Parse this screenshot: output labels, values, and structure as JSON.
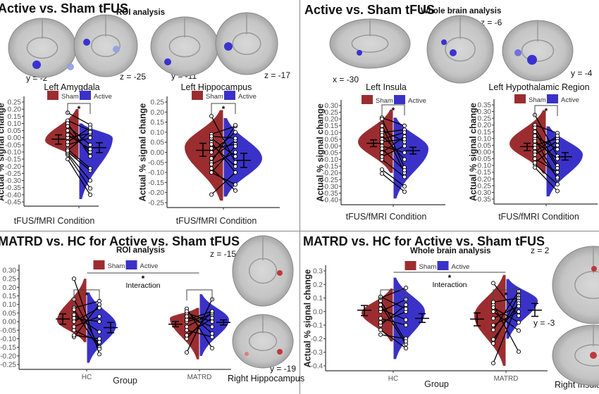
{
  "colors": {
    "sham": "#9b2d30",
    "active": "#3a32c8",
    "axis": "#333333",
    "tick_text": "#555555"
  },
  "legend": {
    "sham": "Sham",
    "active": "Active"
  },
  "panels": [
    {
      "title": "Active vs. Sham tFUS",
      "subtitle": "ROI analysis",
      "slice_labels": [
        "y = -2",
        "z = -25",
        "y = -11",
        "z = -17"
      ],
      "highlight": "blue"
    },
    {
      "title": "Active vs. Sham tFUS",
      "subtitle": "Whole brain analysis",
      "slice_labels": [
        "x = -30",
        "z = -6",
        "y = -4"
      ],
      "highlight": "blue"
    },
    {
      "title": "MATRD vs. HC for Active vs. Sham tFUS",
      "subtitle": "ROI analysis",
      "slice_labels": [
        "z = -15",
        "y = -19"
      ],
      "region_label": "Right Hippocampus",
      "highlight": "red"
    },
    {
      "title": "MATRD vs. HC for Active vs. Sham tFUS",
      "subtitle": "Whole brain analysis",
      "slice_labels": [
        "z = 2",
        "y = -3"
      ],
      "region_label": "Right Insula",
      "highlight": "red"
    }
  ],
  "chart_data": [
    {
      "type": "violin",
      "title": "Left Amygdala",
      "xlabel": "tFUS/fMRI Condition",
      "ylabel": "Actual % signal change",
      "yticks": [
        "0.25",
        "0.20",
        "0.15",
        "0.10",
        "0.05",
        "0.00",
        "-0.05",
        "-0.10",
        "-0.15",
        "-0.20",
        "-0.25",
        "-0.30",
        "-0.35",
        "-0.40",
        "-0.45"
      ],
      "categories": [
        ""
      ],
      "groups": [
        {
          "sham": {
            "mean": -0.01,
            "ci": [
              -0.045,
              0.02
            ],
            "violin": {
              "min": -0.15,
              "max": 0.2,
              "mode": -0.02
            }
          },
          "active": {
            "mean": -0.07,
            "ci": [
              -0.105,
              -0.035
            ],
            "violin": {
              "min": -0.43,
              "max": 0.1,
              "mode": 0.0
            }
          },
          "pairs": [
            [
              0.175,
              0.09
            ],
            [
              0.12,
              0.05
            ],
            [
              -0.15,
              -0.4
            ],
            [
              -0.12,
              -0.355
            ],
            [
              -0.11,
              -0.3
            ],
            [
              -0.1,
              -0.23
            ],
            [
              -0.08,
              -0.215
            ],
            [
              0.1,
              -0.13
            ],
            [
              0.05,
              -0.1
            ],
            [
              0.0,
              0.03
            ],
            [
              -0.05,
              0.0
            ],
            [
              0.08,
              -0.05
            ],
            [
              -0.03,
              0.07
            ],
            [
              0.02,
              -0.08
            ],
            [
              -0.09,
              0.04
            ]
          ],
          "bracket": "*"
        }
      ]
    },
    {
      "type": "violin",
      "title": "Left Hippocampus",
      "xlabel": "tFUS/fMRI Condition",
      "ylabel": "Actual % signal change",
      "yticks": [
        "0.25",
        "0.20",
        "0.15",
        "0.10",
        "0.05",
        "0.00",
        "-0.05",
        "-0.10",
        "-0.15",
        "-0.20",
        "-0.25"
      ],
      "categories": [
        ""
      ],
      "groups": [
        {
          "sham": {
            "mean": 0.01,
            "ci": [
              -0.02,
              0.045
            ],
            "violin": {
              "min": -0.24,
              "max": 0.21,
              "mode": 0.025
            }
          },
          "active": {
            "mean": -0.04,
            "ci": [
              -0.075,
              -0.005
            ],
            "violin": {
              "min": -0.22,
              "max": 0.17,
              "mode": -0.03
            }
          },
          "pairs": [
            [
              0.18,
              -0.05
            ],
            [
              -0.21,
              -0.1
            ],
            [
              0.09,
              0.13
            ],
            [
              -0.05,
              0.135
            ],
            [
              0.0,
              0.1
            ],
            [
              -0.1,
              -0.16
            ],
            [
              -0.08,
              -0.19
            ],
            [
              0.05,
              -0.1
            ],
            [
              0.02,
              0.04
            ],
            [
              -0.03,
              0.06
            ],
            [
              0.07,
              -0.02
            ],
            [
              -0.06,
              0.0
            ],
            [
              0.04,
              -0.07
            ],
            [
              -0.1,
              0.03
            ],
            [
              0.08,
              0.07
            ]
          ],
          "bracket": "*"
        }
      ]
    },
    {
      "type": "violin",
      "title": "Left Insula",
      "xlabel": "tFUS/fMRI Condition",
      "ylabel": "Actual % signal change",
      "yticks": [
        "0.30",
        "0.25",
        "0.20",
        "0.15",
        "0.10",
        "0.05",
        "0.00",
        "-0.05",
        "-0.10",
        "-0.15",
        "-0.20",
        "-0.25",
        "-0.30",
        "-0.35",
        "-0.40"
      ],
      "categories": [
        ""
      ],
      "groups": [
        {
          "sham": {
            "mean": 0.02,
            "ci": [
              -0.005,
              0.045
            ],
            "violin": {
              "min": -0.2,
              "max": 0.27,
              "mode": 0.03
            }
          },
          "active": {
            "mean": -0.035,
            "ci": [
              -0.06,
              -0.01
            ],
            "violin": {
              "min": -0.39,
              "max": 0.21,
              "mode": -0.02
            }
          },
          "pairs": [
            [
              0.21,
              0.15
            ],
            [
              -0.175,
              -0.3
            ],
            [
              -0.205,
              -0.34
            ],
            [
              0.2,
              -0.16
            ],
            [
              0.15,
              -0.2
            ],
            [
              0.1,
              0.12
            ],
            [
              -0.1,
              -0.23
            ],
            [
              0.05,
              0.1
            ],
            [
              0.0,
              -0.05
            ],
            [
              -0.05,
              0.07
            ],
            [
              0.08,
              -0.1
            ],
            [
              -0.08,
              0.0
            ],
            [
              0.12,
              0.03
            ],
            [
              -0.02,
              -0.18
            ],
            [
              0.03,
              0.05
            ]
          ],
          "bracket": "*"
        }
      ]
    },
    {
      "type": "violin",
      "title": "Left Hypothalamic Region",
      "xlabel": "tFUS/fMRI Condition",
      "ylabel": "Actual % signal change",
      "yticks": [
        "0.35",
        "0.30",
        "0.25",
        "0.20",
        "0.15",
        "0.10",
        "0.05",
        "0.00",
        "-0.05",
        "-0.10",
        "-0.15",
        "-0.20",
        "-0.25",
        "-0.30",
        "-0.35"
      ],
      "categories": [
        ""
      ],
      "groups": [
        {
          "sham": {
            "mean": 0.04,
            "ci": [
              0.01,
              0.065
            ],
            "violin": {
              "min": -0.16,
              "max": 0.31,
              "mode": 0.06
            }
          },
          "active": {
            "mean": -0.035,
            "ci": [
              -0.06,
              -0.005
            ],
            "violin": {
              "min": -0.33,
              "max": 0.19,
              "mode": -0.02
            }
          },
          "pairs": [
            [
              0.275,
              -0.03
            ],
            [
              0.2,
              0.14
            ],
            [
              0.18,
              -0.1
            ],
            [
              -0.115,
              -0.29
            ],
            [
              -0.09,
              -0.24
            ],
            [
              0.1,
              -0.2
            ],
            [
              0.05,
              0.1
            ],
            [
              0.0,
              0.12
            ],
            [
              -0.05,
              -0.15
            ],
            [
              0.12,
              0.02
            ],
            [
              -0.08,
              0.05
            ],
            [
              0.03,
              -0.19
            ],
            [
              0.08,
              -0.05
            ],
            [
              -0.02,
              0.08
            ],
            [
              0.15,
              -0.12
            ]
          ],
          "bracket": "*"
        }
      ]
    },
    {
      "type": "violin",
      "title": "",
      "xlabel": "Group",
      "ylabel": "",
      "yticks": [
        "0.30",
        "0.25",
        "0.20",
        "0.15",
        "0.10",
        "0.05",
        "0.00",
        "-0.05",
        "-0.10",
        "-0.15",
        "-0.20",
        "-0.25"
      ],
      "categories": [
        "HC",
        "MATRD"
      ],
      "interaction": {
        "star": "*",
        "label": "Interaction"
      },
      "groups": [
        {
          "sham": {
            "mean": 0.015,
            "ci": [
              -0.015,
              0.045
            ],
            "violin": {
              "min": -0.12,
              "max": 0.25,
              "mode": 0.005
            }
          },
          "active": {
            "mean": -0.035,
            "ci": [
              -0.065,
              -0.005
            ],
            "violin": {
              "min": -0.24,
              "max": 0.17,
              "mode": -0.02
            }
          },
          "pairs": [
            [
              0.25,
              -0.19
            ],
            [
              0.13,
              -0.15
            ],
            [
              0.08,
              0.12
            ],
            [
              -0.09,
              0.1
            ],
            [
              -0.08,
              -0.1
            ],
            [
              0.07,
              -0.16
            ],
            [
              0.0,
              0.08
            ],
            [
              -0.03,
              0.03
            ],
            [
              0.04,
              -0.06
            ],
            [
              -0.05,
              -0.12
            ],
            [
              0.02,
              0.0
            ]
          ],
          "bracket": "*"
        },
        {
          "sham": {
            "mean": -0.015,
            "ci": [
              -0.03,
              0.0
            ],
            "violin": {
              "min": -0.22,
              "max": 0.08,
              "mode": 0.02
            }
          },
          "active": {
            "mean": -0.005,
            "ci": [
              -0.02,
              0.01
            ],
            "violin": {
              "min": -0.2,
              "max": 0.16,
              "mode": 0.01
            }
          },
          "pairs": [
            [
              -0.18,
              0.13
            ],
            [
              0.075,
              -0.155
            ],
            [
              -0.1,
              0.06
            ],
            [
              0.05,
              0.0
            ],
            [
              0.0,
              0.04
            ],
            [
              -0.05,
              -0.09
            ],
            [
              0.03,
              -0.03
            ],
            [
              -0.03,
              0.05
            ],
            [
              0.06,
              -0.07
            ],
            [
              -0.08,
              0.02
            ],
            [
              0.01,
              0.06
            ]
          ],
          "bracket": ""
        }
      ]
    },
    {
      "type": "violin",
      "title": "",
      "xlabel": "Group",
      "ylabel": "Actual % signal change",
      "yticks": [
        "0.3",
        "0.2",
        "0.1",
        "0.0",
        "-0.1",
        "-0.2",
        "-0.3",
        "-0.4"
      ],
      "categories": [
        "HC",
        "MATRD"
      ],
      "interaction": {
        "star": "*",
        "label": "Interaction"
      },
      "groups": [
        {
          "sham": {
            "mean": 0.01,
            "ci": [
              -0.03,
              0.045
            ],
            "violin": {
              "min": -0.22,
              "max": 0.17,
              "mode": -0.01
            }
          },
          "active": {
            "mean": -0.05,
            "ci": [
              -0.08,
              -0.015
            ],
            "violin": {
              "min": -0.35,
              "max": 0.25,
              "mode": 0.0
            }
          },
          "pairs": [
            [
              0.1,
              0.175
            ],
            [
              -0.17,
              -0.2
            ],
            [
              -0.135,
              -0.27
            ],
            [
              0.05,
              -0.24
            ],
            [
              0.0,
              0.09
            ],
            [
              -0.05,
              -0.1
            ],
            [
              0.08,
              -0.22
            ],
            [
              -0.1,
              0.05
            ],
            [
              0.02,
              -0.06
            ],
            [
              -0.08,
              0.0
            ],
            [
              0.11,
              0.02
            ]
          ],
          "bracket": ""
        },
        {
          "sham": {
            "mean": -0.055,
            "ci": [
              -0.105,
              -0.01
            ],
            "violin": {
              "min": -0.4,
              "max": 0.27,
              "mode": -0.03
            }
          },
          "active": {
            "mean": 0.01,
            "ci": [
              -0.035,
              0.06
            ],
            "violin": {
              "min": -0.2,
              "max": 0.24,
              "mode": 0.08
            }
          },
          "pairs": [
            [
              0.21,
              -0.03
            ],
            [
              -0.38,
              0.08
            ],
            [
              -0.235,
              0.12
            ],
            [
              -0.205,
              0.06
            ],
            [
              0.05,
              -0.295
            ],
            [
              -0.135,
              0.15
            ],
            [
              0.07,
              0.1
            ],
            [
              0.0,
              -0.14
            ],
            [
              -0.05,
              0.04
            ],
            [
              0.03,
              -0.08
            ],
            [
              -0.1,
              0.0
            ]
          ],
          "bracket": "*"
        }
      ]
    }
  ]
}
